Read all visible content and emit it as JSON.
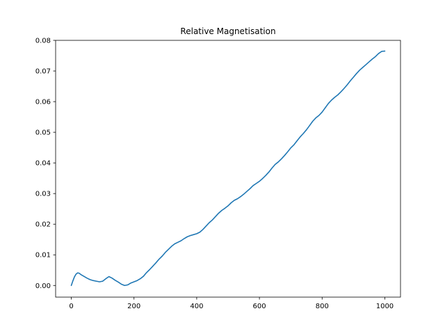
{
  "chart_data": {
    "type": "line",
    "title": "Relative Magnetisation",
    "xlabel": "",
    "ylabel": "",
    "xlim": [
      -50,
      1050
    ],
    "ylim": [
      -0.0038,
      0.08
    ],
    "x_ticks": [
      0,
      200,
      400,
      600,
      800,
      1000
    ],
    "y_ticks": [
      0.0,
      0.01,
      0.02,
      0.03,
      0.04,
      0.05,
      0.06,
      0.07,
      0.08
    ],
    "x_tick_labels": [
      "0",
      "200",
      "400",
      "600",
      "800",
      "1000"
    ],
    "y_tick_labels": [
      "0.00",
      "0.01",
      "0.02",
      "0.03",
      "0.04",
      "0.05",
      "0.06",
      "0.07",
      "0.08"
    ],
    "grid": false,
    "line_color": "#1f77b4",
    "series": [
      {
        "x": [
          0,
          5,
          10,
          15,
          20,
          25,
          30,
          40,
          50,
          60,
          70,
          80,
          90,
          100,
          110,
          120,
          130,
          140,
          150,
          160,
          170,
          180,
          190,
          200,
          210,
          220,
          230,
          240,
          250,
          260,
          270,
          280,
          290,
          300,
          310,
          320,
          330,
          340,
          350,
          360,
          370,
          380,
          390,
          400,
          410,
          420,
          430,
          440,
          450,
          460,
          470,
          480,
          490,
          500,
          510,
          520,
          530,
          540,
          550,
          560,
          570,
          580,
          590,
          600,
          610,
          620,
          630,
          640,
          650,
          660,
          670,
          680,
          690,
          700,
          710,
          720,
          730,
          740,
          750,
          760,
          770,
          780,
          790,
          800,
          810,
          820,
          830,
          840,
          850,
          860,
          870,
          880,
          890,
          900,
          910,
          920,
          930,
          940,
          950,
          960,
          970,
          980,
          990,
          1000
        ],
        "y": [
          0.0,
          0.0015,
          0.0028,
          0.0037,
          0.0041,
          0.004,
          0.0036,
          0.003,
          0.0024,
          0.0019,
          0.0016,
          0.0014,
          0.0012,
          0.0014,
          0.0022,
          0.0029,
          0.0024,
          0.0017,
          0.0011,
          0.0004,
          0.0,
          0.0002,
          0.0008,
          0.0012,
          0.0016,
          0.0022,
          0.003,
          0.0042,
          0.0052,
          0.0063,
          0.0074,
          0.0086,
          0.0096,
          0.0108,
          0.0118,
          0.0128,
          0.0136,
          0.0141,
          0.0146,
          0.0153,
          0.0159,
          0.0163,
          0.0166,
          0.0169,
          0.0174,
          0.0183,
          0.0194,
          0.0205,
          0.0214,
          0.0225,
          0.0236,
          0.0245,
          0.0252,
          0.026,
          0.027,
          0.0278,
          0.0283,
          0.029,
          0.0298,
          0.0307,
          0.0316,
          0.0326,
          0.0333,
          0.034,
          0.0349,
          0.0359,
          0.037,
          0.0383,
          0.0395,
          0.0403,
          0.0413,
          0.0424,
          0.0436,
          0.0449,
          0.0459,
          0.0472,
          0.0485,
          0.0496,
          0.0508,
          0.0522,
          0.0536,
          0.0547,
          0.0555,
          0.0566,
          0.058,
          0.0594,
          0.0605,
          0.0614,
          0.0622,
          0.0632,
          0.0643,
          0.0655,
          0.0668,
          0.068,
          0.0692,
          0.0703,
          0.0712,
          0.0721,
          0.073,
          0.0739,
          0.0747,
          0.0757,
          0.0764,
          0.0765
        ]
      }
    ]
  }
}
